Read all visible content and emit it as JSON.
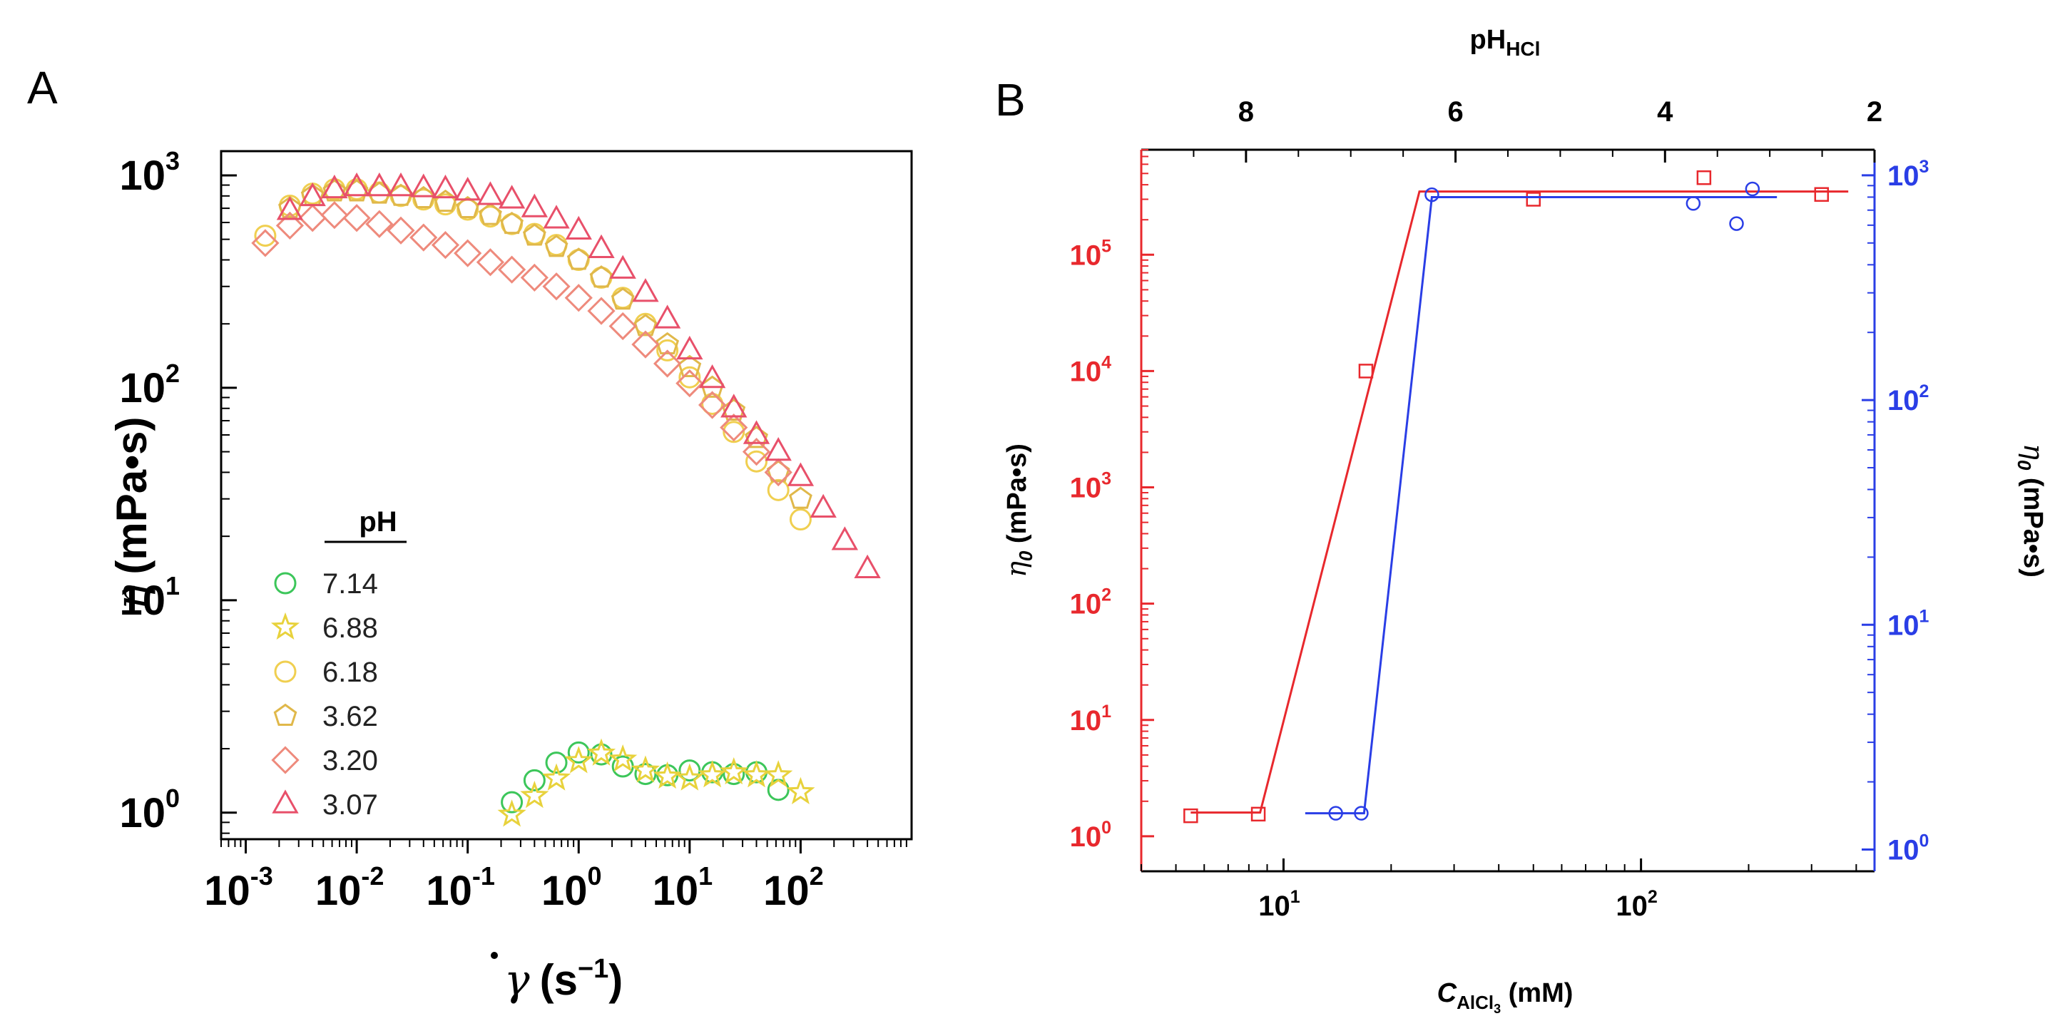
{
  "panels": {
    "a_label": "A",
    "b_label": "B"
  },
  "colors": {
    "green": "#3cc65a",
    "yellow_star": "#e8d23c",
    "yellow_hex": "#f0cf50",
    "gold": "#e0b84a",
    "salmon": "#ee8a7c",
    "pink": "#e8506a",
    "red": "#e8282d",
    "blue": "#2a3ee6"
  },
  "chart_data": [
    {
      "id": "A",
      "type": "scatter",
      "title": "",
      "xlabel": "γ̇ (s⁻¹)",
      "xlabel_parts": {
        "symbol": "γ",
        "unit": "(s",
        "exp": "−1",
        "close": ")"
      },
      "ylabel": "η (mPa•s)",
      "ylabel_parts": {
        "symbol": "η",
        "unit": "(mPa•s)"
      },
      "xscale": "log",
      "yscale": "log",
      "xlim": [
        0.0006,
        1000
      ],
      "ylim": [
        0.75,
        1300
      ],
      "xticks": [
        {
          "value": 0.001,
          "base": "10",
          "exp": "-3"
        },
        {
          "value": 0.01,
          "base": "10",
          "exp": "-2"
        },
        {
          "value": 0.1,
          "base": "10",
          "exp": "-1"
        },
        {
          "value": 1,
          "base": "10",
          "exp": "0"
        },
        {
          "value": 10,
          "base": "10",
          "exp": "1"
        },
        {
          "value": 100,
          "base": "10",
          "exp": "2"
        }
      ],
      "yticks": [
        {
          "value": 1,
          "base": "10",
          "exp": "0"
        },
        {
          "value": 10,
          "base": "10",
          "exp": "1"
        },
        {
          "value": 100,
          "base": "10",
          "exp": "2"
        },
        {
          "value": 1000,
          "base": "10",
          "exp": "3"
        }
      ],
      "legend_title": "pH",
      "legend_position": "bottom-left",
      "series": [
        {
          "name": "7.14",
          "marker": "circle",
          "color": "#3cc65a",
          "x": [
            0.25,
            0.4,
            0.63,
            1.0,
            1.6,
            2.5,
            4.0,
            6.3,
            10,
            16,
            25,
            40,
            63
          ],
          "y": [
            1.12,
            1.42,
            1.72,
            1.92,
            1.88,
            1.65,
            1.52,
            1.5,
            1.58,
            1.55,
            1.52,
            1.55,
            1.28
          ]
        },
        {
          "name": "6.88",
          "marker": "star",
          "color": "#e8d23c",
          "x": [
            0.25,
            0.4,
            0.63,
            1.0,
            1.6,
            2.5,
            4.0,
            6.3,
            10,
            16,
            25,
            40,
            63,
            100
          ],
          "y": [
            0.98,
            1.2,
            1.45,
            1.75,
            1.9,
            1.78,
            1.58,
            1.48,
            1.45,
            1.5,
            1.55,
            1.5,
            1.5,
            1.25
          ]
        },
        {
          "name": "6.18",
          "marker": "circle",
          "color": "#f0cf50",
          "x": [
            0.0015,
            0.0025,
            0.004,
            0.0063,
            0.01,
            0.016,
            0.025,
            0.04,
            0.063,
            0.1,
            0.16,
            0.25,
            0.4,
            0.63,
            1.0,
            1.6,
            2.5,
            4.0,
            6.3,
            10,
            16,
            25,
            40,
            63,
            100
          ],
          "y": [
            520,
            720,
            820,
            860,
            860,
            830,
            800,
            770,
            730,
            690,
            640,
            590,
            530,
            470,
            400,
            330,
            265,
            200,
            150,
            112,
            84,
            62,
            45,
            33,
            24
          ]
        },
        {
          "name": "3.62",
          "marker": "pentagon",
          "color": "#e0b84a",
          "x": [
            0.0025,
            0.004,
            0.0063,
            0.01,
            0.016,
            0.025,
            0.04,
            0.063,
            0.1,
            0.16,
            0.25,
            0.4,
            0.63,
            1.0,
            1.6,
            2.5,
            4.0,
            6.3,
            10,
            16,
            25,
            40,
            63,
            100
          ],
          "y": [
            700,
            800,
            840,
            840,
            820,
            800,
            780,
            750,
            700,
            650,
            590,
            520,
            460,
            400,
            330,
            260,
            195,
            160,
            125,
            100,
            78,
            58,
            40,
            30
          ]
        },
        {
          "name": "3.20",
          "marker": "diamond",
          "color": "#ee8a7c",
          "x": [
            0.0015,
            0.0025,
            0.004,
            0.0063,
            0.01,
            0.016,
            0.025,
            0.04,
            0.063,
            0.1,
            0.16,
            0.25,
            0.4,
            0.63,
            1.0,
            1.6,
            2.5,
            4.0,
            6.3,
            10,
            16,
            25,
            40,
            63
          ],
          "y": [
            480,
            580,
            630,
            650,
            630,
            590,
            550,
            510,
            470,
            430,
            390,
            360,
            330,
            300,
            265,
            230,
            195,
            160,
            130,
            105,
            83,
            65,
            50,
            40
          ]
        },
        {
          "name": "3.07",
          "marker": "triangle",
          "color": "#e8506a",
          "x": [
            0.0025,
            0.004,
            0.0063,
            0.01,
            0.016,
            0.025,
            0.04,
            0.063,
            0.1,
            0.16,
            0.25,
            0.4,
            0.63,
            1.0,
            1.6,
            2.5,
            4.0,
            6.3,
            10,
            16,
            25,
            40,
            63,
            100,
            160,
            250,
            400
          ],
          "y": [
            680,
            790,
            860,
            880,
            880,
            880,
            870,
            860,
            840,
            800,
            770,
            700,
            620,
            550,
            450,
            360,
            280,
            210,
            150,
            110,
            80,
            60,
            50,
            38,
            27,
            19,
            14
          ]
        }
      ]
    },
    {
      "id": "B",
      "type": "scatter",
      "xlabel": "C_AlCl3 (mM)",
      "xlabel_parts": {
        "symbol": "C",
        "sub": "AlCl",
        "subsub": "3",
        "unit": " (mM)"
      },
      "top_xlabel": "pH_HCl",
      "top_xlabel_parts": {
        "base": "pH",
        "sub": "HCl"
      },
      "ylabel_left": "η0 (mPa•s)",
      "ylabel_right": "η0 (mPa•s)",
      "ylabel_parts": {
        "symbol": "η",
        "sub": "0",
        "unit": " (mPa•s)"
      },
      "xscale": "log",
      "xlim": [
        4,
        450
      ],
      "top_xlim": [
        9,
        2
      ],
      "top_xticks": [
        "8",
        "6",
        "4",
        "2"
      ],
      "xticks": [
        {
          "value": 10,
          "base": "10",
          "exp": "1"
        },
        {
          "value": 100,
          "base": "10",
          "exp": "2"
        }
      ],
      "left_yscale": "log",
      "left_ylim": [
        0.5,
        800000
      ],
      "left_yticks": [
        {
          "value": 1,
          "base": "10",
          "exp": "0"
        },
        {
          "value": 10,
          "base": "10",
          "exp": "1"
        },
        {
          "value": 100,
          "base": "10",
          "exp": "2"
        },
        {
          "value": 1000,
          "base": "10",
          "exp": "3"
        },
        {
          "value": 10000,
          "base": "10",
          "exp": "4"
        },
        {
          "value": 100000,
          "base": "10",
          "exp": "5"
        }
      ],
      "right_yscale": "log",
      "right_ylim": [
        0.8,
        1300
      ],
      "right_yticks": [
        {
          "value": 1,
          "base": "10",
          "exp": "0"
        },
        {
          "value": 10,
          "base": "10",
          "exp": "1"
        },
        {
          "value": 100,
          "base": "10",
          "exp": "2"
        },
        {
          "value": 1000,
          "base": "10",
          "exp": "3"
        }
      ],
      "series": [
        {
          "name": "AlCl3 (red squares, left axis)",
          "marker": "square",
          "color": "#e8282d",
          "axis": "left",
          "x": [
            5.5,
            8.5,
            17,
            50,
            150,
            320
          ],
          "y": [
            1.5,
            1.55,
            10000,
            300000,
            460000,
            330000
          ],
          "fit": {
            "x": [
              5.5,
              8.6,
              24,
              380
            ],
            "y": [
              1.6,
              1.6,
              350000,
              350000
            ]
          }
        },
        {
          "name": "HCl (blue circles, right axis)",
          "marker": "circle",
          "color": "#2a3ee6",
          "axis": "right",
          "x": [
            14,
            16.5,
            26,
            140,
            185,
            205
          ],
          "y": [
            1.45,
            1.45,
            820,
            750,
            610,
            870
          ],
          "fit": {
            "x": [
              11.5,
              16.8,
              26,
              240
            ],
            "y": [
              1.45,
              1.45,
              800,
              800
            ]
          }
        }
      ]
    }
  ]
}
